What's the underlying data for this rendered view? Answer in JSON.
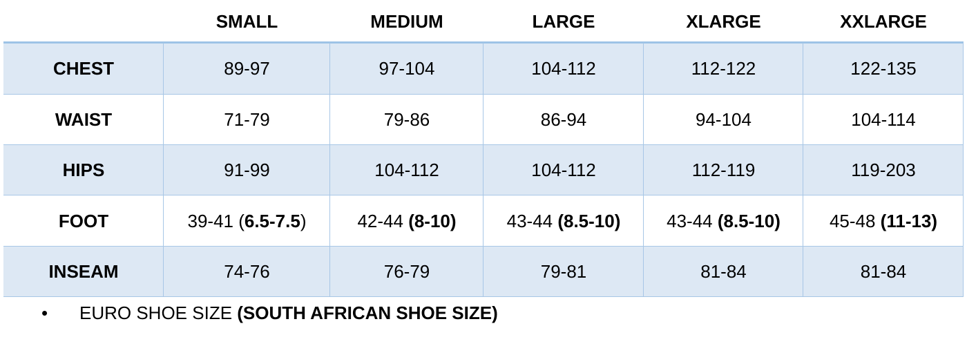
{
  "table": {
    "columns": [
      "SMALL",
      "MEDIUM",
      "LARGE",
      "XLARGE",
      "XXLARGE"
    ],
    "rows": [
      {
        "label": "CHEST",
        "cells": [
          "89-97",
          "97-104",
          "104-112",
          "112-122",
          "122-135"
        ]
      },
      {
        "label": "WAIST",
        "cells": [
          "71-79",
          "79-86",
          "86-94",
          "94-104",
          "104-114"
        ]
      },
      {
        "label": "HIPS",
        "cells": [
          "91-99",
          "104-112",
          "104-112",
          "112-119",
          "119-203"
        ]
      },
      {
        "label": "FOOT",
        "cells": [
          [
            {
              "text": "39-41 ("
            },
            {
              "text": "6.5-7.5",
              "bold": true
            },
            {
              "text": ")"
            }
          ],
          [
            {
              "text": "42-44 "
            },
            {
              "text": "(8-10)",
              "bold": true
            }
          ],
          [
            {
              "text": "43-44 "
            },
            {
              "text": "(8.5-10)",
              "bold": true
            }
          ],
          [
            {
              "text": "43-44 "
            },
            {
              "text": "(8.5-10)",
              "bold": true
            }
          ],
          [
            {
              "text": "45-48 "
            },
            {
              "text": "(11-13)",
              "bold": true
            }
          ]
        ]
      },
      {
        "label": "INSEAM",
        "cells": [
          "74-76",
          "76-79",
          "79-81",
          "81-84",
          "81-84"
        ]
      }
    ]
  },
  "note": [
    {
      "text": "EURO SHOE SIZE "
    },
    {
      "text": "(SOUTH AFRICAN SHOE SIZE)",
      "bold": true
    }
  ]
}
